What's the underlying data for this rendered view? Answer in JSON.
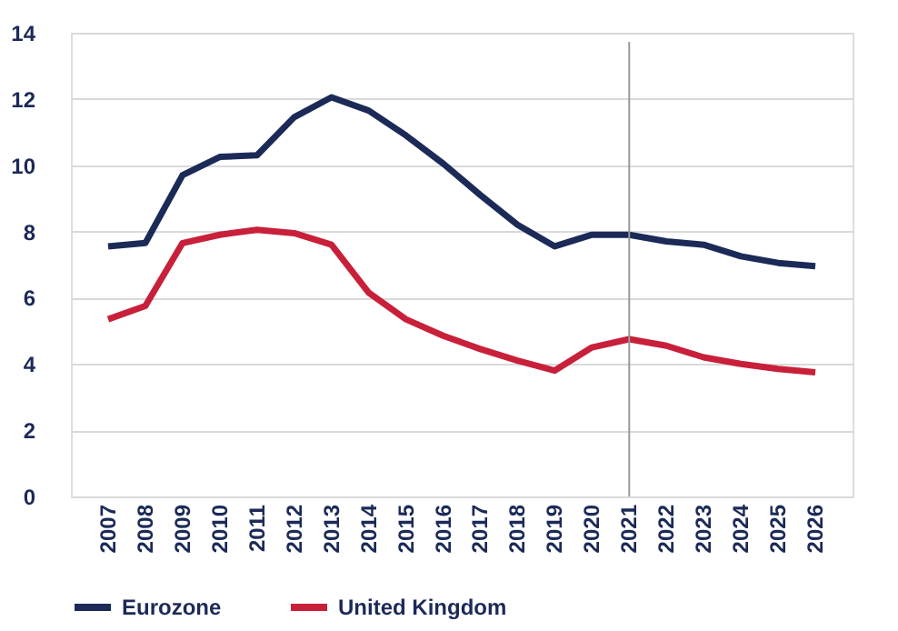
{
  "chart_data": {
    "type": "line",
    "categories": [
      "2007",
      "2008",
      "2009",
      "2010",
      "2011",
      "2012",
      "2013",
      "2014",
      "2015",
      "2016",
      "2017",
      "2018",
      "2019",
      "2020",
      "2021",
      "2022",
      "2023",
      "2024",
      "2025",
      "2026"
    ],
    "series": [
      {
        "name": "Eurozone",
        "color": "#1b2a57",
        "values": [
          7.55,
          7.65,
          9.7,
          10.25,
          10.3,
          11.45,
          12.05,
          11.65,
          10.9,
          10.05,
          9.1,
          8.2,
          7.55,
          7.9,
          7.9,
          7.7,
          7.6,
          7.25,
          7.05,
          6.95
        ]
      },
      {
        "name": "United Kingdom",
        "color": "#c8203a",
        "values": [
          5.35,
          5.75,
          7.65,
          7.9,
          8.05,
          7.95,
          7.6,
          6.15,
          5.35,
          4.85,
          4.45,
          4.1,
          3.8,
          4.5,
          4.75,
          4.55,
          4.2,
          4.0,
          3.85,
          3.75
        ]
      }
    ],
    "ylim": [
      0,
      14
    ],
    "yticks": [
      0,
      2,
      4,
      6,
      8,
      10,
      12,
      14
    ],
    "grid": "y",
    "legend": "bottom",
    "marker": "none",
    "line_style": "solid",
    "ref_lines": [
      {
        "axis": "x",
        "value": "2021",
        "color": "#999999"
      }
    ]
  }
}
